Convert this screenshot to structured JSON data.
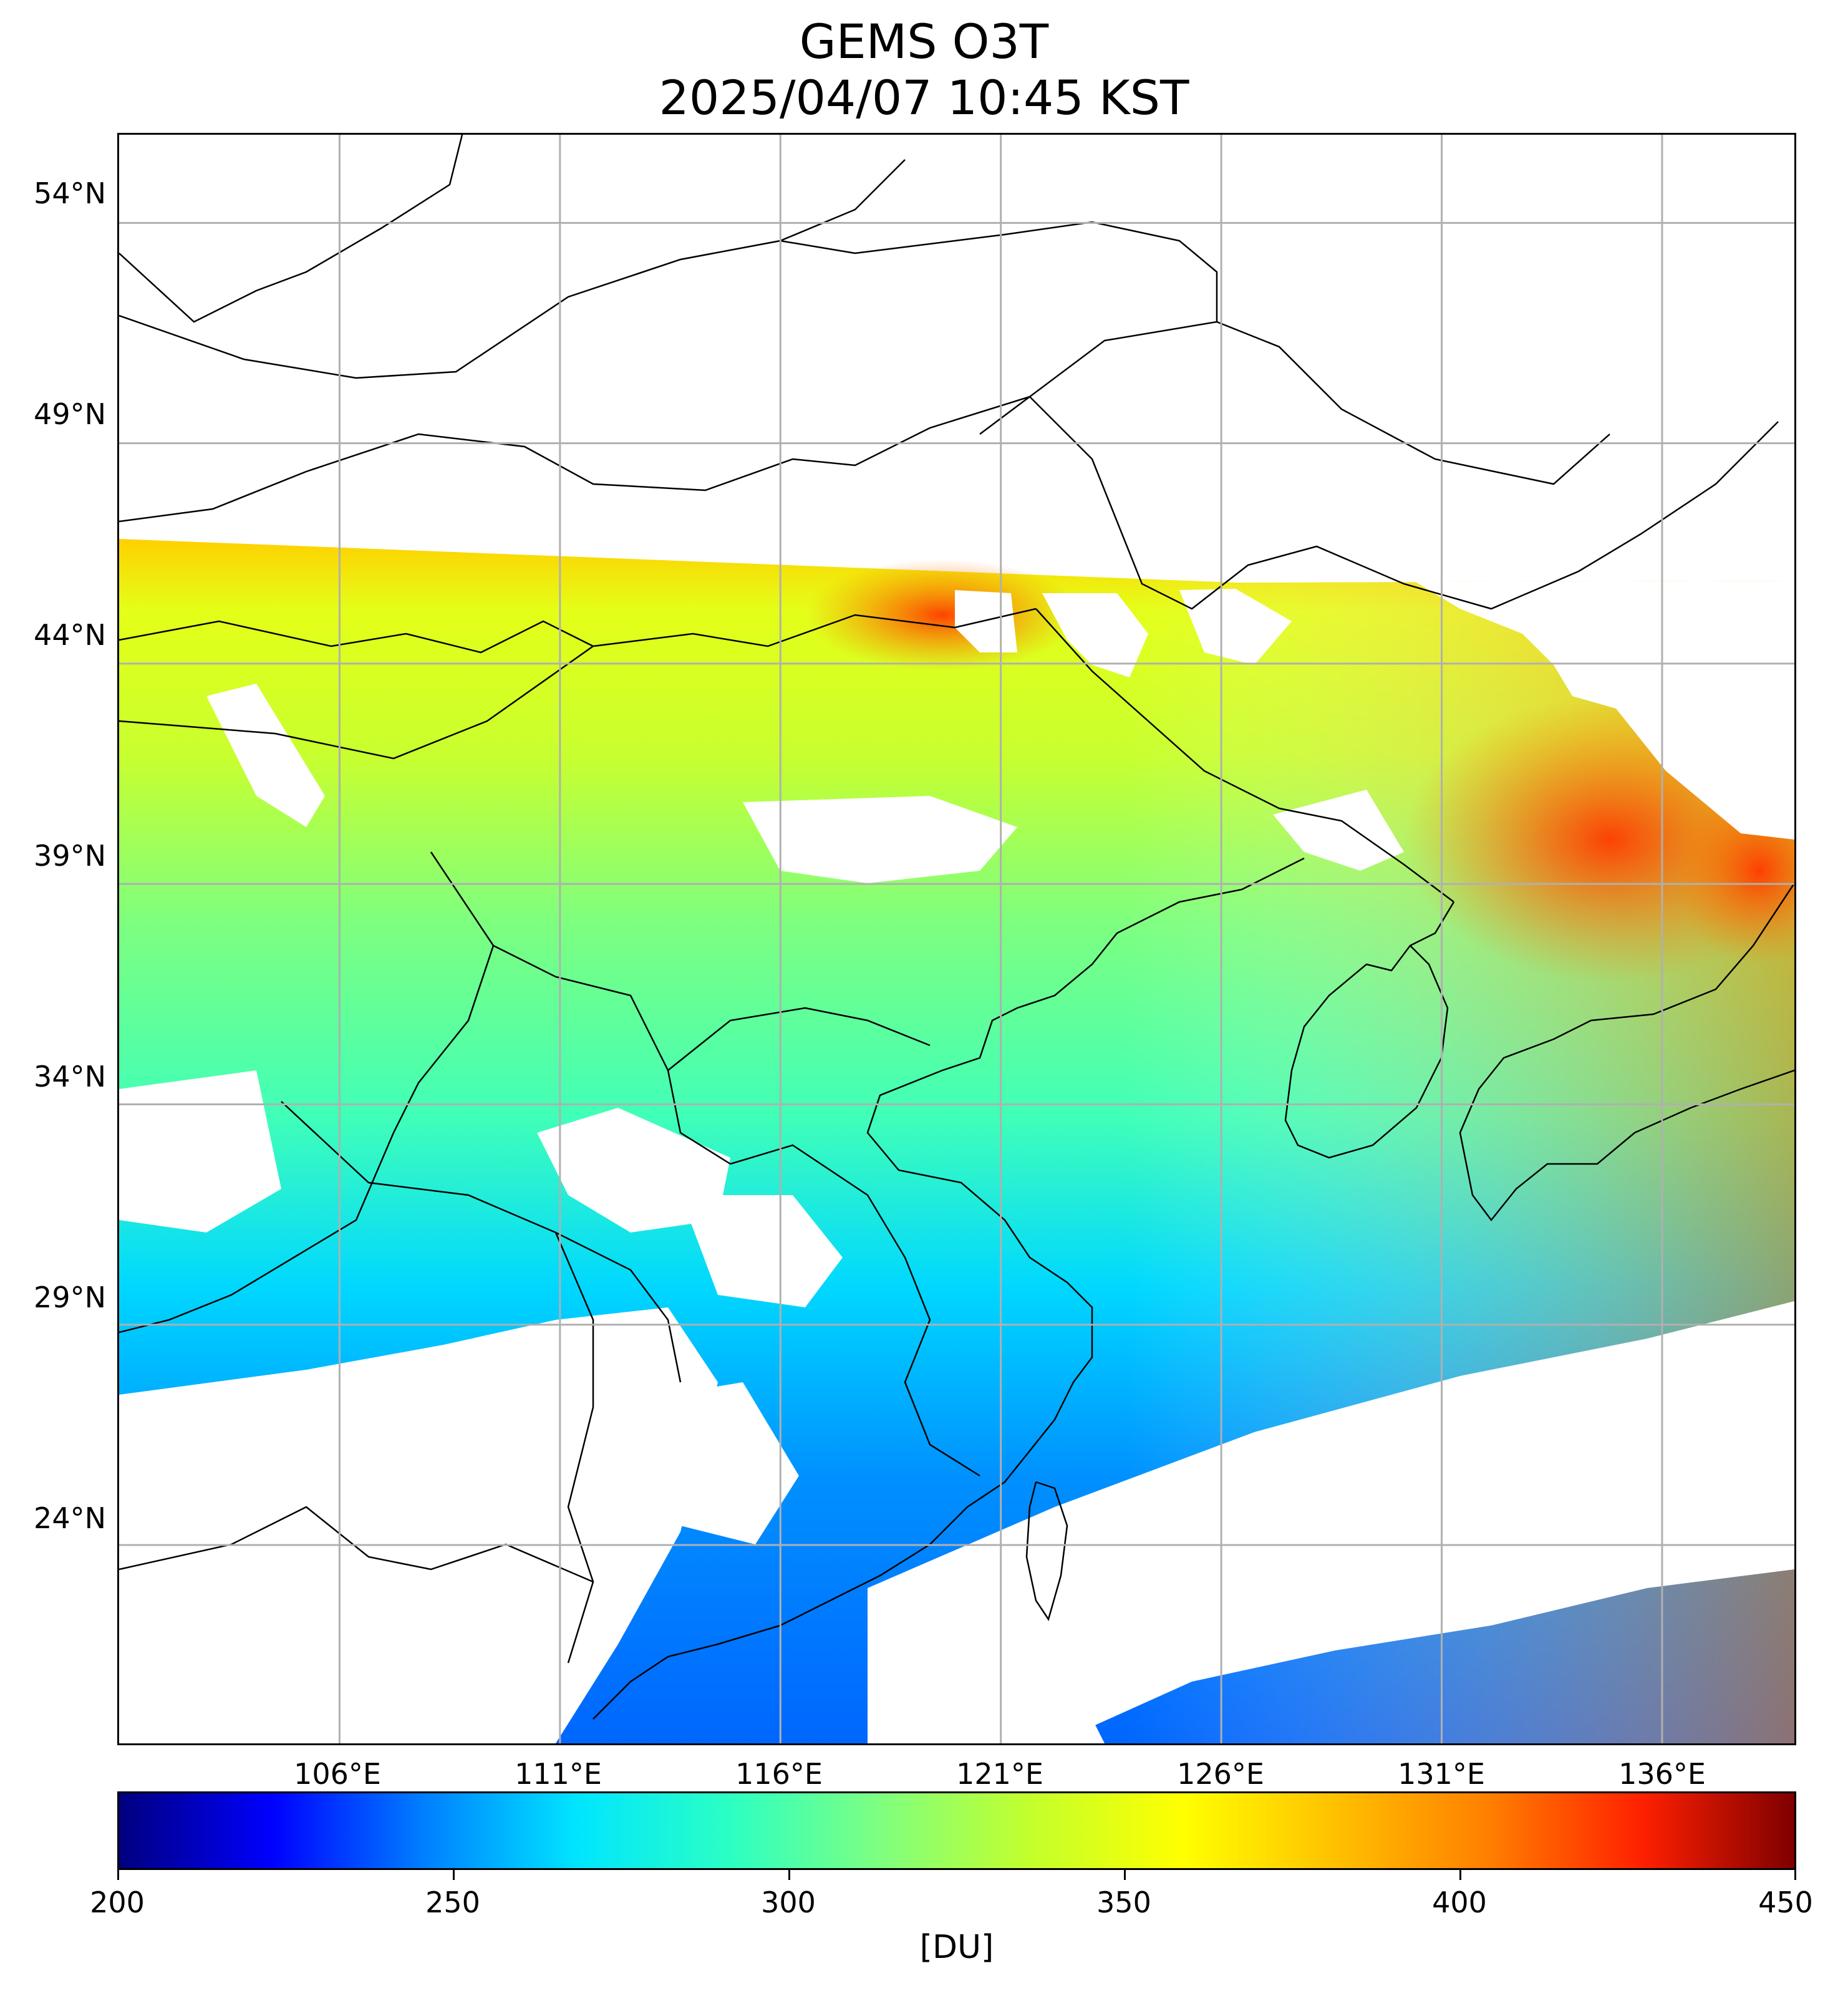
{
  "title": {
    "line1": "GEMS O3T",
    "line2": "2025/04/07 10:45 KST"
  },
  "map": {
    "lat_labels": [
      "54°N",
      "49°N",
      "44°N",
      "39°N",
      "34°N",
      "29°N",
      "24°N"
    ],
    "lon_labels": [
      "106°E",
      "111°E",
      "116°E",
      "121°E",
      "126°E",
      "131°E",
      "136°E"
    ],
    "lat_values": [
      54,
      49,
      44,
      39,
      34,
      29,
      24
    ],
    "lon_values": [
      106,
      111,
      116,
      121,
      126,
      131,
      136
    ],
    "lon_range": [
      101,
      139
    ],
    "lat_range": [
      19.5,
      56
    ],
    "grid": true
  },
  "colorbar": {
    "min": 200,
    "max": 450,
    "tick_labels": [
      "200",
      "250",
      "300",
      "350",
      "400",
      "450"
    ],
    "tick_values": [
      200,
      250,
      300,
      350,
      400,
      450
    ],
    "unit": "[DU]",
    "colormap": "jet"
  },
  "colors": {
    "jet": [
      "#00007f",
      "#0000ff",
      "#007fff",
      "#00e5ff",
      "#2bffc4",
      "#7fff7f",
      "#c4ff2b",
      "#ffff00",
      "#ffc000",
      "#ff7f00",
      "#ff2000",
      "#7f0000"
    ]
  }
}
